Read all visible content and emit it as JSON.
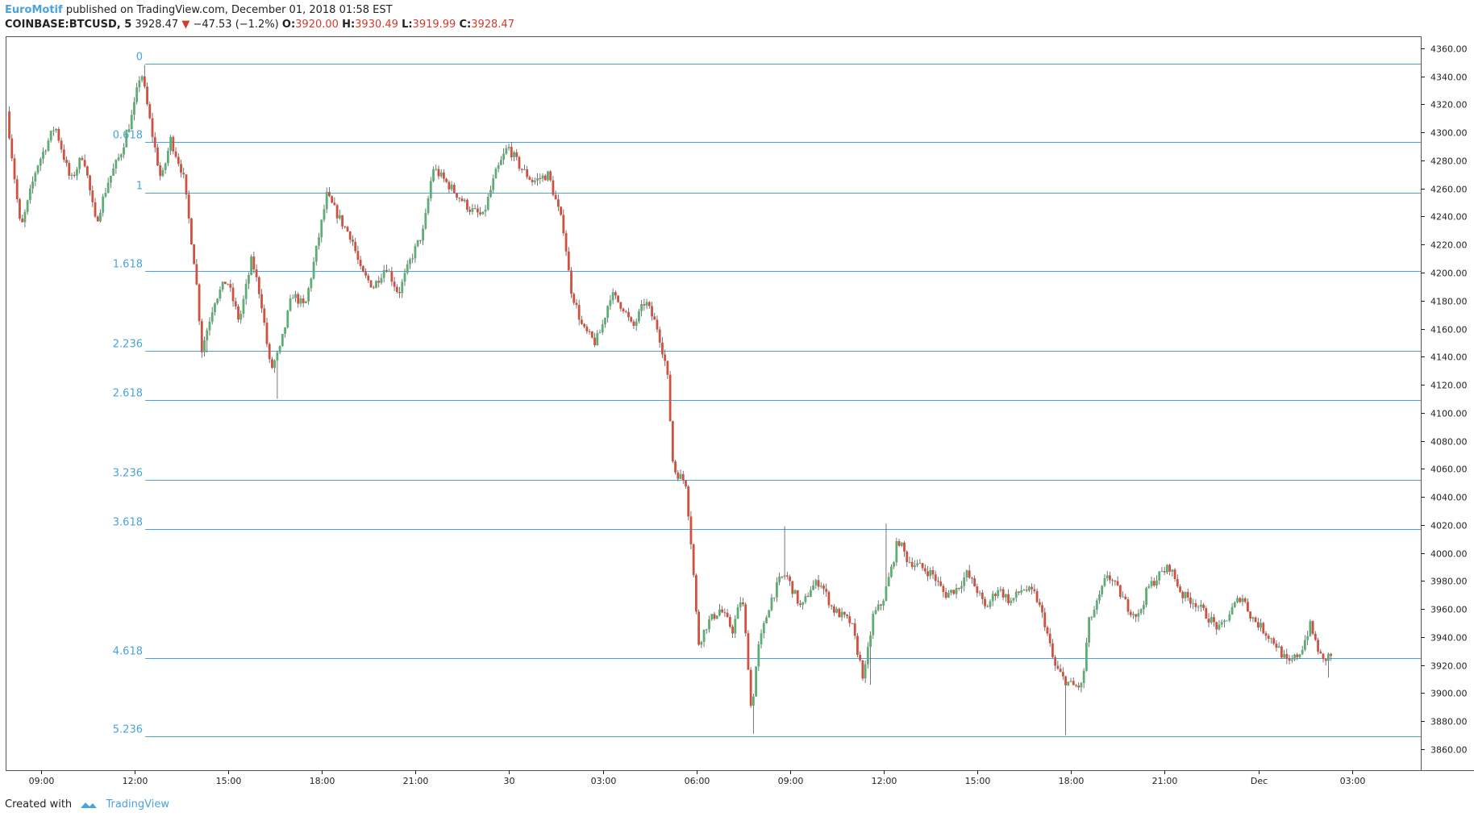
{
  "header": {
    "publisher": "EuroMotif",
    "published_text": "published on TradingView.com, December 01, 2018 01:58 EST",
    "symbol": "COINBASE:BTCUSD, 5",
    "last": "3928.47",
    "change_arrow": "▼",
    "change": "−47.53 (−1.2%)",
    "o_label": "O:",
    "o_value": "3920.00",
    "h_label": "H:",
    "h_value": "3930.49",
    "l_label": "L:",
    "l_value": "3919.99",
    "c_label": "C:",
    "c_value": "3928.47"
  },
  "footer": {
    "created_with": "Created with",
    "brand": "TradingView",
    "logo_icon": "tradingview-logo-icon"
  },
  "colors": {
    "up": "#5cae74",
    "down": "#d0513f",
    "fib": "#4aa3df",
    "axis": "#222222",
    "border": "#555555"
  },
  "chart_data": {
    "type": "candlestick",
    "y_range": [
      3845,
      4368
    ],
    "y_ticks": [
      3860,
      3880,
      3900,
      3920,
      3940,
      3960,
      3980,
      4000,
      4020,
      4040,
      4060,
      4080,
      4100,
      4120,
      4140,
      4160,
      4180,
      4200,
      4220,
      4240,
      4260,
      4280,
      4300,
      4320,
      4340,
      4360
    ],
    "y_tick_labels": [
      "3860.00",
      "3880.00",
      "3900.00",
      "3920.00",
      "3940.00",
      "3960.00",
      "3980.00",
      "4000.00",
      "4020.00",
      "4040.00",
      "4060.00",
      "4080.00",
      "4100.00",
      "4120.00",
      "4140.00",
      "4160.00",
      "4180.00",
      "4200.00",
      "4220.00",
      "4240.00",
      "4260.00",
      "4280.00",
      "4300.00",
      "4320.00",
      "4340.00",
      "4360.00"
    ],
    "x_ticks": [
      {
        "h": 9,
        "label": "09:00"
      },
      {
        "h": 12,
        "label": "12:00"
      },
      {
        "h": 15,
        "label": "15:00"
      },
      {
        "h": 18,
        "label": "18:00"
      },
      {
        "h": 21,
        "label": "21:00"
      },
      {
        "h": 24,
        "label": "30"
      },
      {
        "h": 27,
        "label": "03:00"
      },
      {
        "h": 30,
        "label": "06:00"
      },
      {
        "h": 33,
        "label": "09:00"
      },
      {
        "h": 36,
        "label": "12:00"
      },
      {
        "h": 39,
        "label": "15:00"
      },
      {
        "h": 42,
        "label": "18:00"
      },
      {
        "h": 45,
        "label": "21:00"
      },
      {
        "h": 48,
        "label": "Dec"
      },
      {
        "h": 51,
        "label": "03:00"
      }
    ],
    "x_range_hours": [
      7.9,
      53.2
    ],
    "fib_levels": [
      {
        "label": "0",
        "price": 4349
      },
      {
        "label": "0.618",
        "price": 4293
      },
      {
        "label": "1",
        "price": 4257
      },
      {
        "label": "1.618",
        "price": 4201
      },
      {
        "label": "2.236",
        "price": 4144
      },
      {
        "label": "2.618",
        "price": 4109
      },
      {
        "label": "3.236",
        "price": 4052
      },
      {
        "label": "3.618",
        "price": 4017
      },
      {
        "label": "4.618",
        "price": 3925
      },
      {
        "label": "5.236",
        "price": 3869
      }
    ],
    "price_path": [
      [
        7.95,
        4315
      ],
      [
        8.4,
        4230
      ],
      [
        8.9,
        4275
      ],
      [
        9.5,
        4305
      ],
      [
        10.0,
        4265
      ],
      [
        10.4,
        4285
      ],
      [
        10.8,
        4235
      ],
      [
        11.2,
        4265
      ],
      [
        11.6,
        4285
      ],
      [
        12.0,
        4315
      ],
      [
        12.25,
        4345
      ],
      [
        12.6,
        4300
      ],
      [
        12.9,
        4265
      ],
      [
        13.2,
        4295
      ],
      [
        13.6,
        4270
      ],
      [
        14.0,
        4200
      ],
      [
        14.2,
        4145
      ],
      [
        14.6,
        4180
      ],
      [
        15.0,
        4195
      ],
      [
        15.4,
        4165
      ],
      [
        15.8,
        4210
      ],
      [
        16.1,
        4180
      ],
      [
        16.4,
        4130
      ],
      [
        16.7,
        4145
      ],
      [
        17.1,
        4185
      ],
      [
        17.5,
        4175
      ],
      [
        17.9,
        4220
      ],
      [
        18.2,
        4255
      ],
      [
        18.7,
        4235
      ],
      [
        19.0,
        4225
      ],
      [
        19.3,
        4200
      ],
      [
        19.7,
        4190
      ],
      [
        20.1,
        4205
      ],
      [
        20.5,
        4185
      ],
      [
        20.9,
        4210
      ],
      [
        21.3,
        4230
      ],
      [
        21.6,
        4275
      ],
      [
        22.0,
        4265
      ],
      [
        22.4,
        4255
      ],
      [
        22.8,
        4245
      ],
      [
        23.2,
        4240
      ],
      [
        23.6,
        4270
      ],
      [
        24.0,
        4290
      ],
      [
        24.4,
        4275
      ],
      [
        24.8,
        4265
      ],
      [
        25.3,
        4270
      ],
      [
        25.8,
        4230
      ],
      [
        26.0,
        4190
      ],
      [
        26.4,
        4160
      ],
      [
        26.8,
        4150
      ],
      [
        27.0,
        4160
      ],
      [
        27.3,
        4185
      ],
      [
        27.7,
        4175
      ],
      [
        28.0,
        4160
      ],
      [
        28.4,
        4180
      ],
      [
        28.8,
        4160
      ],
      [
        29.1,
        4130
      ],
      [
        29.3,
        4060
      ],
      [
        29.7,
        4050
      ],
      [
        29.9,
        4000
      ],
      [
        30.1,
        3935
      ],
      [
        30.4,
        3950
      ],
      [
        30.8,
        3960
      ],
      [
        31.2,
        3945
      ],
      [
        31.5,
        3970
      ],
      [
        31.7,
        3920
      ],
      [
        31.8,
        3885
      ],
      [
        32.0,
        3930
      ],
      [
        32.4,
        3965
      ],
      [
        32.7,
        3980
      ],
      [
        32.9,
        3985
      ],
      [
        33.1,
        3975
      ],
      [
        33.4,
        3960
      ],
      [
        33.7,
        3975
      ],
      [
        34.0,
        3980
      ],
      [
        34.4,
        3960
      ],
      [
        34.7,
        3955
      ],
      [
        35.0,
        3950
      ],
      [
        35.4,
        3910
      ],
      [
        35.7,
        3955
      ],
      [
        36.0,
        3965
      ],
      [
        36.3,
        3990
      ],
      [
        36.5,
        4010
      ],
      [
        36.8,
        3995
      ],
      [
        37.2,
        3990
      ],
      [
        37.6,
        3985
      ],
      [
        38.0,
        3970
      ],
      [
        38.4,
        3975
      ],
      [
        38.7,
        3985
      ],
      [
        39.0,
        3975
      ],
      [
        39.3,
        3960
      ],
      [
        39.7,
        3975
      ],
      [
        40.1,
        3965
      ],
      [
        40.5,
        3975
      ],
      [
        40.9,
        3970
      ],
      [
        41.2,
        3950
      ],
      [
        41.5,
        3920
      ],
      [
        41.8,
        3910
      ],
      [
        42.1,
        3905
      ],
      [
        42.4,
        3905
      ],
      [
        42.6,
        3950
      ],
      [
        42.9,
        3965
      ],
      [
        43.2,
        3985
      ],
      [
        43.5,
        3975
      ],
      [
        43.9,
        3960
      ],
      [
        44.2,
        3955
      ],
      [
        44.5,
        3975
      ],
      [
        44.9,
        3985
      ],
      [
        45.2,
        3990
      ],
      [
        45.6,
        3970
      ],
      [
        46.0,
        3965
      ],
      [
        46.4,
        3955
      ],
      [
        46.8,
        3945
      ],
      [
        47.2,
        3960
      ],
      [
        47.5,
        3970
      ],
      [
        47.8,
        3955
      ],
      [
        48.2,
        3945
      ],
      [
        48.6,
        3935
      ],
      [
        49.0,
        3920
      ],
      [
        49.4,
        3930
      ],
      [
        49.7,
        3948
      ],
      [
        50.0,
        3928
      ],
      [
        50.1,
        3922
      ],
      [
        50.3,
        3927
      ]
    ],
    "wick_spikes": [
      {
        "h": 12.3,
        "high": 4348
      },
      {
        "h": 14.25,
        "low": 4143
      },
      {
        "h": 16.5,
        "low": 4110
      },
      {
        "h": 31.75,
        "low": 3871
      },
      {
        "h": 32.8,
        "high": 4019
      },
      {
        "h": 35.55,
        "low": 3906
      },
      {
        "h": 36.0,
        "high": 4021
      },
      {
        "h": 41.8,
        "low": 3870
      },
      {
        "h": 50.2,
        "low": 3911
      }
    ]
  }
}
